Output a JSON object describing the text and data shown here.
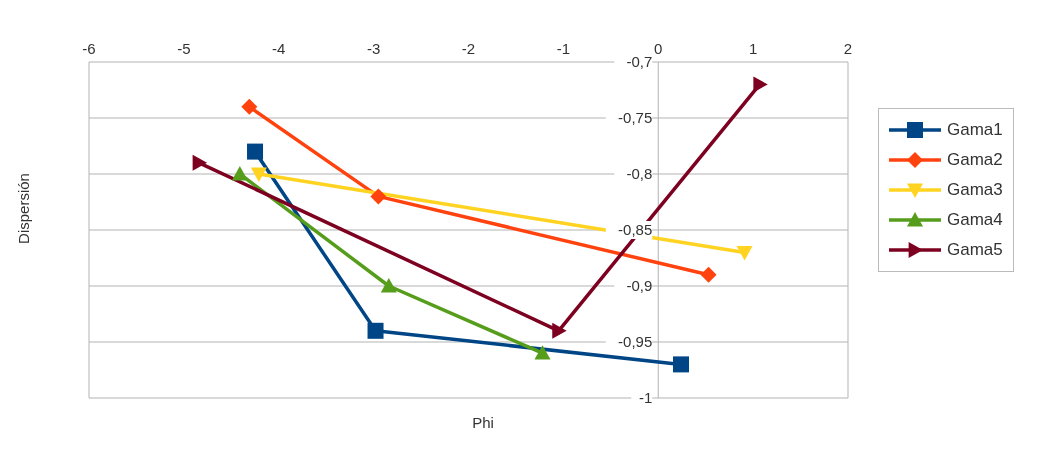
{
  "chart_data": {
    "type": "line",
    "xlabel": "Phi",
    "ylabel": "Dispersión",
    "xlim": [
      -6,
      2
    ],
    "xticks": [
      -6,
      -5,
      -4,
      -3,
      -2,
      -1,
      0,
      1,
      2
    ],
    "ylim": [
      -1,
      -0.7
    ],
    "yticks": [
      {
        "value": -1,
        "label": "-1"
      },
      {
        "value": -0.95,
        "label": "-0,95"
      },
      {
        "value": -0.9,
        "label": "-0,9"
      },
      {
        "value": -0.85,
        "label": "-0,85"
      },
      {
        "value": -0.8,
        "label": "-0,8"
      },
      {
        "value": -0.75,
        "label": "-0,75"
      },
      {
        "value": -0.7,
        "label": "-0,7"
      }
    ],
    "grid": "y",
    "legend": "right",
    "series": [
      {
        "name": "Gama1",
        "color": "#004586",
        "marker": "square",
        "x": [
          -4.25,
          -2.98,
          0.24
        ],
        "values": [
          -0.78,
          -0.94,
          -0.97
        ]
      },
      {
        "name": "Gama2",
        "color": "#ff420e",
        "marker": "diamond",
        "x": [
          -4.31,
          -2.95,
          0.53
        ],
        "values": [
          -0.74,
          -0.82,
          -0.89
        ]
      },
      {
        "name": "Gama3",
        "color": "#ffd320",
        "marker": "triangle-down",
        "x": [
          -4.21,
          0.91
        ],
        "values": [
          -0.8,
          -0.87
        ]
      },
      {
        "name": "Gama4",
        "color": "#579d1c",
        "marker": "triangle",
        "x": [
          -4.41,
          -2.84,
          -1.22
        ],
        "values": [
          -0.8,
          -0.9,
          -0.96
        ]
      },
      {
        "name": "Gama5",
        "color": "#7e0021",
        "marker": "triangle-right",
        "x": [
          -4.84,
          -1.05,
          1.07
        ],
        "values": [
          -0.79,
          -0.94,
          -0.72
        ]
      }
    ]
  }
}
